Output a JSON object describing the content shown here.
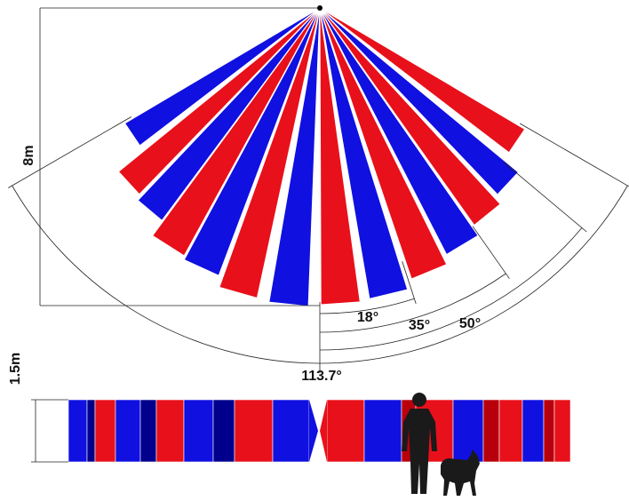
{
  "diagram": {
    "top_view": {
      "height_label": "8m",
      "angle_labels": [
        "18°",
        "35°",
        "50°",
        "113.7°"
      ]
    },
    "side_view": {
      "height_label": "1.5m"
    },
    "colors": {
      "red": "#e8101a",
      "blue": "#1010e0",
      "dark_red": "#b8000c",
      "dark_blue": "#00008c",
      "line": "#222222"
    },
    "icons": [
      "person-silhouette-icon",
      "dog-silhouette-icon"
    ]
  }
}
